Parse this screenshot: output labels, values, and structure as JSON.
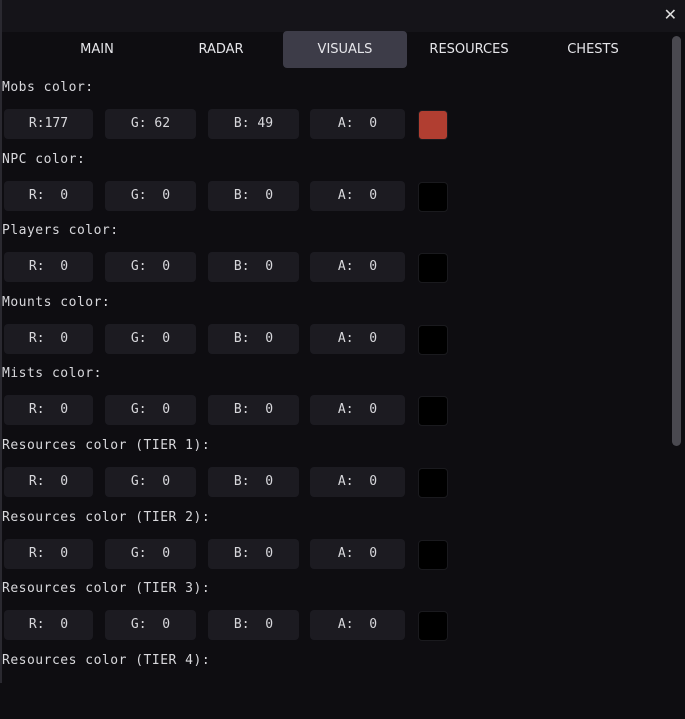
{
  "window": {
    "close_icon": "close-x"
  },
  "tabs": [
    {
      "label": "MAIN",
      "active": false
    },
    {
      "label": "RADAR",
      "active": false
    },
    {
      "label": "VISUALS",
      "active": true
    },
    {
      "label": "RESOURCES",
      "active": false
    },
    {
      "label": "CHESTS",
      "active": false
    }
  ],
  "sections": [
    {
      "label": "Mobs color:",
      "r": "R:177",
      "g": "G: 62",
      "b": "B: 49",
      "a": "A:  0",
      "color": "#b13e31"
    },
    {
      "label": "NPC color:",
      "r": "R:  0",
      "g": "G:  0",
      "b": "B:  0",
      "a": "A:  0",
      "color": "#000000"
    },
    {
      "label": "Players color:",
      "r": "R:  0",
      "g": "G:  0",
      "b": "B:  0",
      "a": "A:  0",
      "color": "#000000"
    },
    {
      "label": "Mounts color:",
      "r": "R:  0",
      "g": "G:  0",
      "b": "B:  0",
      "a": "A:  0",
      "color": "#000000"
    },
    {
      "label": "Mists color:",
      "r": "R:  0",
      "g": "G:  0",
      "b": "B:  0",
      "a": "A:  0",
      "color": "#000000"
    },
    {
      "label": "Resources color (TIER 1):",
      "r": "R:  0",
      "g": "G:  0",
      "b": "B:  0",
      "a": "A:  0",
      "color": "#000000"
    },
    {
      "label": "Resources color (TIER 2):",
      "r": "R:  0",
      "g": "G:  0",
      "b": "B:  0",
      "a": "A:  0",
      "color": "#000000"
    },
    {
      "label": "Resources color (TIER 3):",
      "r": "R:  0",
      "g": "G:  0",
      "b": "B:  0",
      "a": "A:  0",
      "color": "#000000"
    },
    {
      "label": "Resources color (TIER 4):"
    }
  ]
}
